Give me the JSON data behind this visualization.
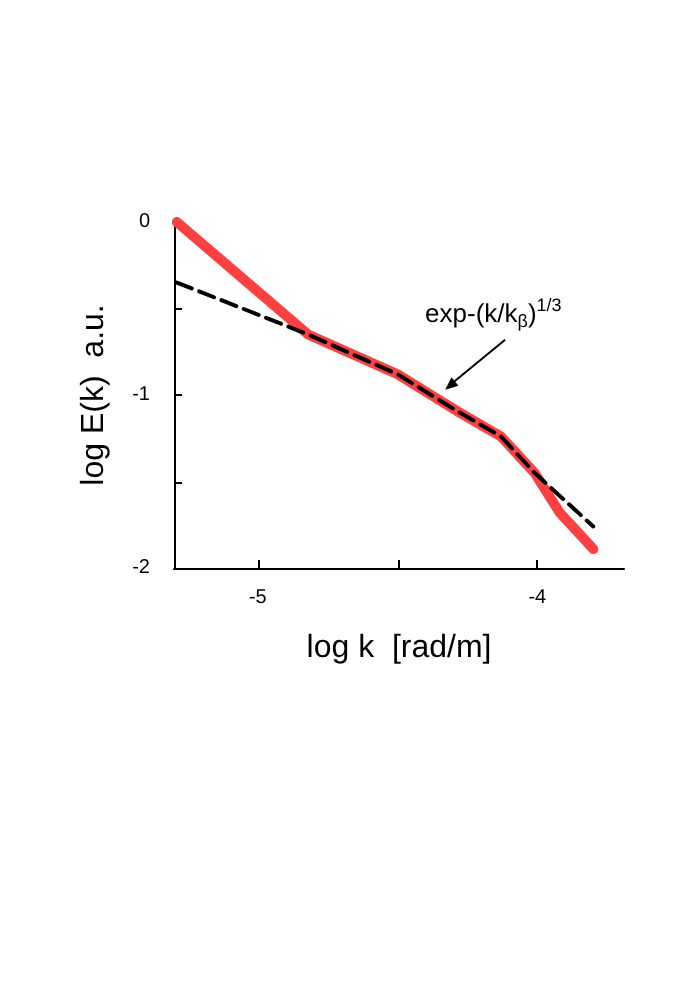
{
  "chart_data": {
    "type": "line",
    "xlabel": "log k  [rad/m]",
    "ylabel": "log E(k)  a.u.",
    "xlim": [
      -5.3,
      -3.69
    ],
    "xticks": [
      -5,
      {
        "value": -4.5,
        "label": null
      },
      -4
    ],
    "ylim": [
      -2,
      0
    ],
    "yticks": [
      -2,
      {
        "value": -1.5,
        "label": null
      },
      -1,
      {
        "value": -0.5,
        "label": null
      },
      0
    ],
    "grid": false,
    "marker": "none",
    "series": [
      {
        "color": "#ff4040",
        "line_style": "solid",
        "x": [
          -5.29,
          -4.82,
          -4.5,
          -4.29,
          -4.13,
          -4.01,
          -3.92,
          -3.8
        ],
        "values": [
          0,
          -0.65,
          -0.88,
          -1.09,
          -1.24,
          -1.45,
          -1.68,
          -1.89
        ]
      },
      {
        "color": "#000000",
        "line_style": "dashed",
        "x": [
          -5.29,
          -4.82,
          -4.5,
          -4.29,
          -4.13,
          -4.01,
          -3.8
        ],
        "values": [
          -0.35,
          -0.65,
          -0.88,
          -1.09,
          -1.24,
          -1.45,
          -1.76
        ]
      }
    ],
    "annotations": [
      {
        "text": "exp-(k/k$_{β}$)$^{1/3}$",
        "x": -4.33,
        "y": -0.97
      }
    ]
  }
}
